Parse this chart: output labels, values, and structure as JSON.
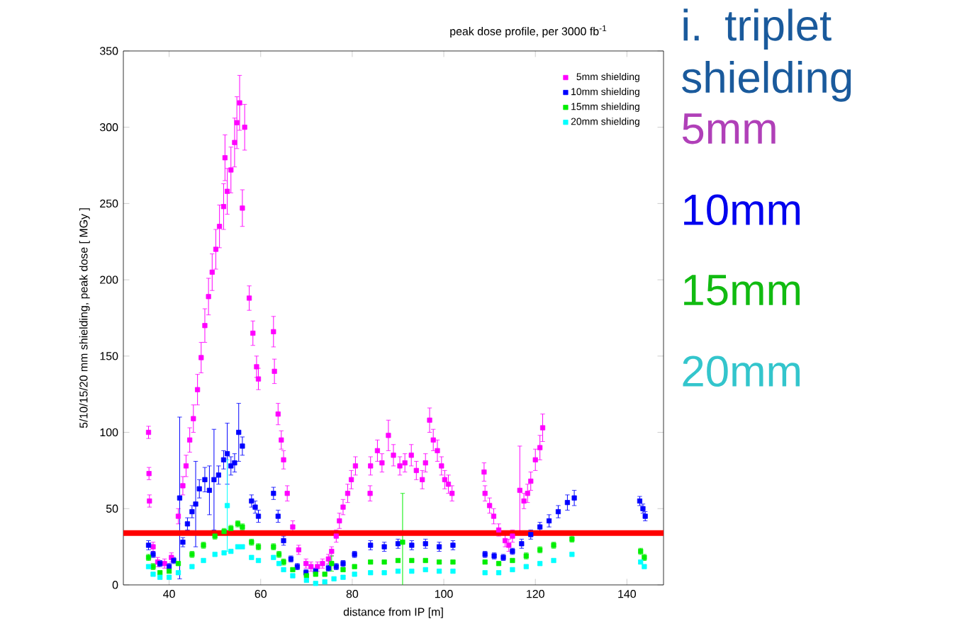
{
  "chart_data": {
    "type": "scatter",
    "title": "peak dose profile, per 3000 fb$^{-1}$",
    "xlabel": "distance from IP [m]",
    "ylabel": "5/10/15/20 mm shielding, peak dose [ MGy ]",
    "xlim": [
      30,
      148
    ],
    "xticks": [
      40,
      60,
      80,
      100,
      120,
      140
    ],
    "ylim": [
      0,
      350
    ],
    "yticks": [
      0,
      50,
      100,
      150,
      200,
      250,
      300,
      350
    ],
    "marker": "square",
    "legend": "top right",
    "grid": false,
    "ref_lines": [
      {
        "axis": "y",
        "value": 34,
        "color": "#ff0000"
      }
    ],
    "annotations": [
      "i. triplet shielding",
      "5mm",
      "10mm",
      "15mm",
      "20mm"
    ],
    "series": [
      {
        "name": "5mm shielding",
        "color": "#ff00ff",
        "x": [
          35.5,
          35.6,
          35.7,
          36.5,
          37.5,
          39,
          40.5,
          42,
          43,
          43.7,
          44.5,
          45.3,
          46.2,
          47,
          47.8,
          48.6,
          49.4,
          50.2,
          51,
          51.9,
          52.2,
          52.7,
          53.5,
          54.3,
          54.8,
          55.4,
          56,
          56.5,
          57.5,
          58.3,
          59.1,
          59.5,
          62.8,
          63,
          63.8,
          64.5,
          65,
          65.8,
          67,
          68.3,
          69.9,
          71,
          72.4,
          73.5,
          74.8,
          75.5,
          76.5,
          77.2,
          78,
          79,
          79.8,
          80.7,
          83.9,
          84,
          85.5,
          86.5,
          87.9,
          89,
          90.4,
          91.5,
          92.9,
          94,
          95.3,
          96,
          96.9,
          97.7,
          98.6,
          99.5,
          100.2,
          101,
          101.8,
          108.8,
          109,
          110,
          110.9,
          112,
          113.4,
          114.2,
          115,
          116.6,
          117.5,
          118.3,
          119,
          120,
          121,
          121.6
        ],
        "values": [
          100,
          73,
          55,
          25,
          15,
          14,
          18,
          45,
          65,
          78,
          95,
          109,
          128,
          149,
          170,
          189,
          205,
          220,
          235,
          248,
          280,
          258,
          272,
          290,
          303,
          316,
          247,
          300,
          188,
          165,
          143,
          135,
          166,
          140,
          112,
          95,
          82,
          60,
          38,
          23,
          14,
          12,
          12,
          14,
          17,
          22,
          32,
          42,
          51,
          60,
          69,
          78,
          60,
          78,
          88,
          80,
          98,
          85,
          78,
          80,
          85,
          75,
          69,
          80,
          108,
          95,
          88,
          78,
          69,
          66,
          60,
          74,
          60,
          52,
          45,
          36,
          29,
          26,
          32,
          62,
          55,
          60,
          68,
          82,
          90,
          103
        ],
        "errors": [
          4,
          4,
          4,
          3,
          3,
          3,
          3,
          5,
          6,
          7,
          8,
          9,
          10,
          10,
          11,
          12,
          12,
          13,
          14,
          15,
          15,
          15,
          15,
          16,
          17,
          18,
          12,
          15,
          8,
          8,
          7,
          7,
          10,
          8,
          7,
          6,
          6,
          5,
          4,
          3,
          3,
          3,
          3,
          3,
          3,
          3,
          4,
          5,
          5,
          6,
          6,
          6,
          5,
          6,
          7,
          6,
          10,
          7,
          6,
          6,
          7,
          6,
          6,
          6,
          8,
          7,
          7,
          6,
          6,
          6,
          5,
          6,
          5,
          5,
          5,
          4,
          4,
          4,
          4,
          29,
          5,
          6,
          6,
          7,
          8,
          9
        ]
      },
      {
        "name": "10mm shielding",
        "color": "#0000ff",
        "x": [
          35.5,
          36.5,
          38,
          40,
          41,
          42.3,
          43,
          44,
          45,
          45.8,
          46.6,
          47.8,
          48.8,
          49.8,
          50.8,
          51.9,
          52.7,
          53.5,
          54.3,
          55.2,
          56,
          58,
          58.8,
          59.5,
          62.8,
          63.8,
          65,
          66.6,
          68,
          69.9,
          72,
          74.8,
          76.5,
          78,
          80.5,
          84,
          87,
          90,
          93,
          96,
          99,
          102,
          109,
          111,
          113,
          115,
          117,
          119,
          121,
          123,
          125,
          127,
          128.5,
          142.8,
          143.5,
          144
        ],
        "values": [
          26,
          20,
          14,
          12,
          16,
          57,
          28,
          40,
          48,
          53,
          63,
          69,
          62,
          69,
          72,
          82,
          86,
          78,
          80,
          100,
          91,
          55,
          51,
          45,
          60,
          45,
          29,
          17,
          12,
          8,
          9,
          11,
          12,
          14,
          20,
          26,
          25,
          27,
          26,
          27,
          25,
          26,
          20,
          19,
          18,
          22,
          27,
          33,
          38,
          42,
          48,
          54,
          57,
          55,
          50,
          45
        ],
        "errors": [
          3,
          2,
          2,
          2,
          2,
          53,
          3,
          4,
          4,
          28,
          6,
          8,
          16,
          33,
          6,
          6,
          20,
          6,
          6,
          19,
          6,
          4,
          4,
          4,
          4,
          4,
          3,
          2,
          2,
          2,
          2,
          2,
          2,
          2,
          2,
          3,
          3,
          3,
          3,
          3,
          3,
          3,
          2,
          2,
          2,
          2,
          3,
          3,
          3,
          4,
          4,
          5,
          5,
          3,
          3,
          3
        ]
      },
      {
        "name": "15mm shielding",
        "color": "#00ee00",
        "x": [
          35.5,
          36.5,
          38,
          40,
          42,
          45,
          47.5,
          50,
          52,
          53.5,
          55,
          56,
          58,
          59.5,
          62.8,
          64,
          65,
          67,
          70,
          72,
          74,
          75.5,
          78,
          80.5,
          84,
          87,
          90,
          91,
          93,
          96,
          99,
          102,
          109,
          112,
          115,
          118,
          121,
          124,
          128,
          143,
          143.8
        ],
        "values": [
          18,
          12,
          8,
          9,
          14,
          20,
          26,
          32,
          35,
          37,
          40,
          38,
          28,
          25,
          25,
          20,
          15,
          10,
          6,
          7,
          7,
          14,
          10,
          12,
          15,
          15,
          16,
          28,
          16,
          16,
          15,
          15,
          15,
          14,
          16,
          19,
          23,
          26,
          30,
          22,
          18
        ],
        "errors": [
          2,
          2,
          1,
          1,
          1,
          2,
          2,
          2,
          2,
          2,
          2,
          2,
          2,
          2,
          2,
          2,
          2,
          1,
          1,
          1,
          1,
          5,
          1,
          1,
          1,
          1,
          1,
          32,
          1,
          1,
          1,
          1,
          1,
          1,
          1,
          2,
          2,
          2,
          2,
          2,
          2
        ]
      },
      {
        "name": "20mm shielding",
        "color": "#00ffff",
        "x": [
          35.5,
          36.5,
          38,
          40,
          42,
          45,
          47.5,
          50,
          52,
          52.7,
          53.5,
          55,
          56,
          58,
          59.5,
          62.8,
          64,
          65,
          67,
          70,
          72,
          74,
          76,
          78,
          80.5,
          84,
          87,
          90,
          93,
          96,
          99,
          102,
          109,
          112,
          115,
          118,
          121,
          124,
          128,
          143,
          143.8
        ],
        "values": [
          12,
          7,
          5,
          5,
          8,
          12,
          16,
          20,
          21,
          52,
          22,
          25,
          25,
          18,
          16,
          18,
          14,
          10,
          6,
          3,
          1,
          2,
          4,
          5,
          7,
          8,
          8,
          9,
          9,
          10,
          9,
          9,
          8,
          8,
          10,
          12,
          14,
          16,
          20,
          15,
          12
        ],
        "errors": [
          1,
          1,
          1,
          1,
          1,
          1,
          1,
          1,
          1,
          30,
          1,
          1,
          1,
          1,
          1,
          1,
          1,
          1,
          1,
          1,
          1,
          1,
          1,
          1,
          1,
          1,
          1,
          1,
          1,
          1,
          1,
          1,
          1,
          1,
          1,
          1,
          1,
          1,
          1,
          1,
          1
        ]
      }
    ]
  }
}
